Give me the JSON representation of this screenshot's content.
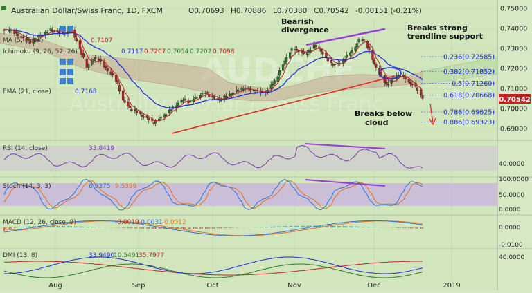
{
  "header": {
    "symbol": "Australian Dollar/Swiss Franc, 1D, FXCM",
    "o": "O0.70693",
    "h": "H0.70886",
    "l": "L0.70380",
    "c": "C0.70542",
    "change": "-0.00151 (-0.21%)"
  },
  "indicators": {
    "ma": {
      "label": "MA (5, close)",
      "value": "0.7107"
    },
    "ichimoku": {
      "label": "Ichimoku (9, 26, 52, 26)",
      "values": [
        "0.7117",
        "0.7207",
        "0.7054",
        "0.7202",
        "0.7098"
      ]
    },
    "ema": {
      "label": "EMA (21, close)",
      "value": "0.7168"
    }
  },
  "annotations": {
    "bearish": [
      "Bearish",
      "divergence"
    ],
    "trendline": [
      "Breaks strong",
      "trendline support"
    ],
    "cloud": [
      "Breaks below",
      "cloud"
    ]
  },
  "fib": [
    {
      "ratio": "0.236",
      "level": "0.72585"
    },
    {
      "ratio": "0.382",
      "level": "0.71852"
    },
    {
      "ratio": "0.5",
      "level": "0.71260"
    },
    {
      "ratio": "0.618",
      "level": "0.70668"
    },
    {
      "ratio": "0.786",
      "level": "0.69825"
    },
    {
      "ratio": "0.886",
      "level": "0.69323"
    }
  ],
  "price_label": "0.70542",
  "rsi": {
    "label": "RSI (14, close)",
    "value": "33.8419",
    "tick": "40.0000"
  },
  "stoch": {
    "label": "Stoch (14, 3, 3)",
    "k": "6.9375",
    "d": "9.5399",
    "ticks": [
      "100.0000",
      "50.0000",
      "0.0000"
    ]
  },
  "macd": {
    "label": "MACD (12, 26, close, 9)",
    "values": [
      "-0.0019",
      "-0.0031",
      "-0.0012"
    ],
    "ticks": [
      "0.0000",
      "-0.0100"
    ]
  },
  "dmi": {
    "label": "DMI (13, 8)",
    "values": [
      "33.9490",
      "10.5491",
      "35.7977"
    ],
    "tick": "40.0000"
  },
  "colors": {
    "bg": "#d6e8c4",
    "up": "#2a7a2a",
    "down": "#c42020",
    "ema": "#1f2bd6",
    "ma": "#b52020",
    "trend": "#e02020",
    "purple": "#9a3ad8",
    "cloud": "#c7a894"
  },
  "chart_data": {
    "type": "candlestick",
    "title": "Australian Dollar/Swiss Franc, 1D, FXCM",
    "x_ticks": [
      "Aug",
      "Sep",
      "Oct",
      "Nov",
      "Dec",
      "2019"
    ],
    "y_ticks": [
      "0.75000",
      "0.74000",
      "0.73000",
      "0.72000",
      "0.71000",
      "0.70000",
      "0.69000"
    ],
    "ylim": [
      0.684,
      0.7525
    ],
    "last_close": 0.70542,
    "fib_levels": [
      0.72585,
      0.71852,
      0.7126,
      0.70668,
      0.69825,
      0.69323
    ],
    "close_path": [
      [
        0,
        0.739
      ],
      [
        3,
        0.7395
      ],
      [
        6,
        0.7375
      ],
      [
        9,
        0.7362
      ],
      [
        12,
        0.7345
      ],
      [
        15,
        0.733
      ],
      [
        18,
        0.7352
      ],
      [
        21,
        0.7365
      ],
      [
        24,
        0.7378
      ],
      [
        27,
        0.7392
      ],
      [
        30,
        0.7385
      ],
      [
        33,
        0.7372
      ],
      [
        36,
        0.738
      ],
      [
        39,
        0.7389
      ],
      [
        42,
        0.734
      ],
      [
        45,
        0.727
      ],
      [
        48,
        0.721
      ],
      [
        51,
        0.7235
      ],
      [
        54,
        0.7262
      ],
      [
        57,
        0.7218
      ],
      [
        60,
        0.719
      ],
      [
        63,
        0.7165
      ],
      [
        66,
        0.712
      ],
      [
        69,
        0.704
      ],
      [
        72,
        0.701
      ],
      [
        75,
        0.699
      ],
      [
        78,
        0.6975
      ],
      [
        81,
        0.696
      ],
      [
        84,
        0.6945
      ],
      [
        87,
        0.693
      ],
      [
        90,
        0.6948
      ],
      [
        93,
        0.697
      ],
      [
        96,
        0.6988
      ],
      [
        99,
        0.7012
      ],
      [
        102,
        0.7035
      ],
      [
        105,
        0.7045
      ],
      [
        108,
        0.703
      ],
      [
        111,
        0.7055
      ],
      [
        114,
        0.7068
      ],
      [
        117,
        0.7078
      ],
      [
        120,
        0.706
      ],
      [
        123,
        0.7042
      ],
      [
        126,
        0.7048
      ],
      [
        129,
        0.7062
      ],
      [
        132,
        0.7075
      ],
      [
        135,
        0.7088
      ],
      [
        138,
        0.71
      ],
      [
        141,
        0.7098
      ],
      [
        144,
        0.709
      ],
      [
        147,
        0.7085
      ],
      [
        150,
        0.708
      ],
      [
        153,
        0.7092
      ],
      [
        156,
        0.7125
      ],
      [
        159,
        0.7165
      ],
      [
        162,
        0.722
      ],
      [
        165,
        0.7275
      ],
      [
        168,
        0.73
      ],
      [
        171,
        0.7288
      ],
      [
        174,
        0.727
      ],
      [
        177,
        0.7288
      ],
      [
        180,
        0.7312
      ],
      [
        183,
        0.73
      ],
      [
        186,
        0.726
      ],
      [
        189,
        0.7232
      ],
      [
        192,
        0.7215
      ],
      [
        195,
        0.7228
      ],
      [
        198,
        0.725
      ],
      [
        201,
        0.7282
      ],
      [
        204,
        0.731
      ],
      [
        207,
        0.7355
      ],
      [
        210,
        0.733
      ],
      [
        213,
        0.7262
      ],
      [
        216,
        0.7205
      ],
      [
        219,
        0.716
      ],
      [
        222,
        0.712
      ],
      [
        225,
        0.714
      ],
      [
        228,
        0.7168
      ],
      [
        231,
        0.7162
      ],
      [
        234,
        0.714
      ],
      [
        237,
        0.7118
      ],
      [
        240,
        0.7095
      ],
      [
        243,
        0.7054
      ]
    ]
  }
}
